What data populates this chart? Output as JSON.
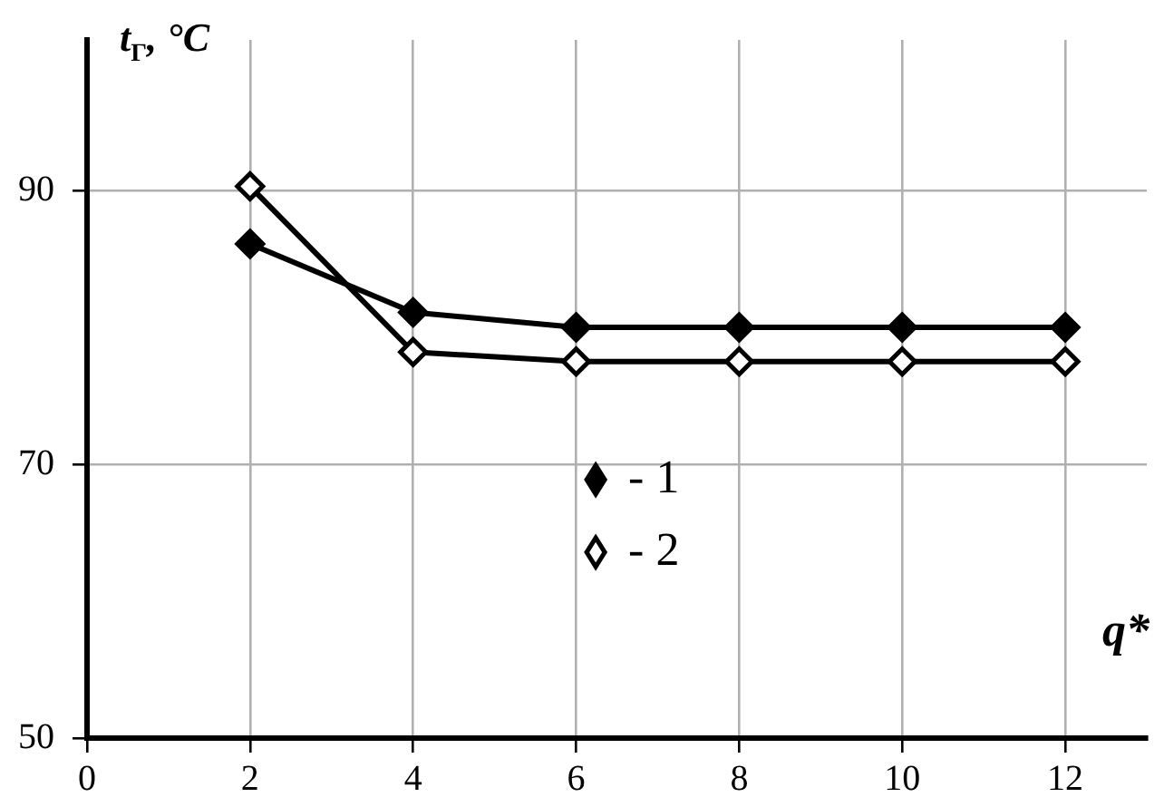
{
  "chart_data": {
    "type": "line",
    "xlabel": "q*",
    "ylabel": "t$_{Г}$, °C",
    "x": [
      2,
      4,
      6,
      8,
      10,
      12
    ],
    "series": [
      {
        "name": "- 1",
        "color": "#000000",
        "values": [
          86.1,
          81.1,
          80,
          80,
          80,
          80
        ]
      },
      {
        "name": "- 2",
        "color": "#000000",
        "values": [
          90.3,
          78.2,
          77.5,
          77.5,
          77.5,
          77.5
        ]
      }
    ],
    "xlim": [
      0,
      13
    ],
    "xticks": [
      0,
      2,
      4,
      6,
      8,
      10,
      12
    ],
    "ylim": [
      50,
      101
    ],
    "yticks": [
      50,
      70,
      90
    ],
    "grid": true,
    "legend": "center",
    "marker": "diamond",
    "line_style": "solid"
  }
}
